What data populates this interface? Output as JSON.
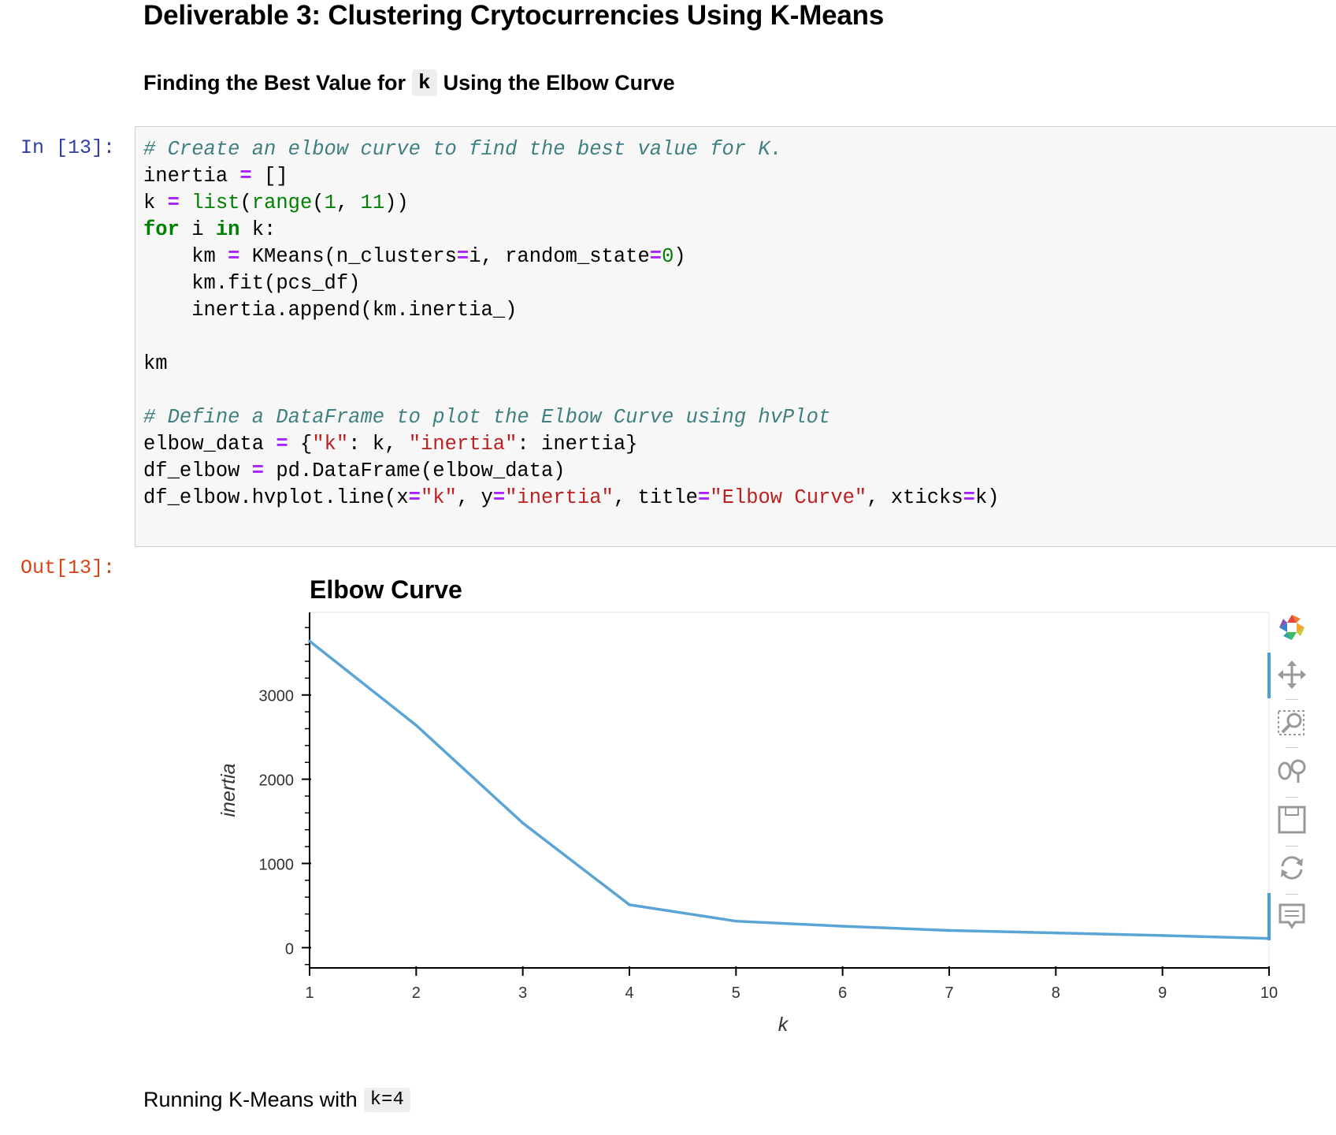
{
  "heading": "Deliverable 3: Clustering Crytocurrencies Using K-Means",
  "subheading": {
    "before": "Finding the Best Value for",
    "code": "k",
    "after": "Using the Elbow Curve"
  },
  "cell": {
    "in_prompt": "In [13]:",
    "out_prompt": "Out[13]:"
  },
  "code_lines": [
    "# Create an elbow curve to find the best value for K.",
    "inertia = []",
    "k = list(range(1, 11))",
    "for i in k:",
    "    km = KMeans(n_clusters=i, random_state=0)",
    "    km.fit(pcs_df)",
    "    inertia.append(km.inertia_)",
    "",
    "km",
    "",
    "# Define a DataFrame to plot the Elbow Curve using hvPlot",
    "elbow_data = {\"k\": k, \"inertia\": inertia}",
    "df_elbow = pd.DataFrame(elbow_data)",
    "df_elbow.hvplot.line(x=\"k\", y=\"inertia\", title=\"Elbow Curve\", xticks=k)"
  ],
  "chart_data": {
    "type": "line",
    "title": "Elbow Curve",
    "xlabel": "k",
    "ylabel": "inertia",
    "x": [
      1,
      2,
      3,
      4,
      5,
      6,
      7,
      8,
      9,
      10
    ],
    "series": [
      {
        "values": [
          3640,
          2640,
          1480,
          510,
          315,
          255,
          205,
          175,
          145,
          110
        ],
        "color": "#5aa4d6"
      }
    ],
    "xticks": [
      "1",
      "2",
      "3",
      "4",
      "5",
      "6",
      "7",
      "8",
      "9",
      "10"
    ],
    "yticks": [
      "0",
      "1000",
      "2000",
      "3000"
    ],
    "xlim": [
      1,
      10
    ],
    "ylim": [
      -240,
      3980
    ],
    "grid": false
  },
  "toolbar": {
    "icons": [
      "bokeh-logo-icon",
      "pan-icon",
      "box-zoom-icon",
      "wheel-zoom-icon",
      "save-icon",
      "reset-icon",
      "hover-icon"
    ]
  },
  "next_markdown": {
    "before": "Running K-Means with",
    "code": "k=4"
  }
}
